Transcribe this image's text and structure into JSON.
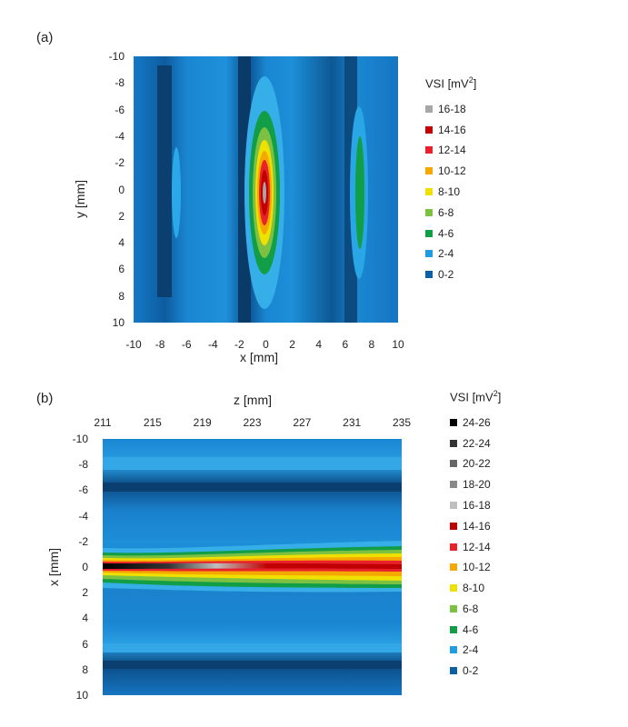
{
  "chart_data": [
    {
      "panel": "(a)",
      "type": "heatmap",
      "xlabel": "x [mm]",
      "ylabel": "y [mm]",
      "x_ticks": [
        "-10",
        "-8",
        "-6",
        "-4",
        "-2",
        "0",
        "2",
        "4",
        "6",
        "8",
        "10"
      ],
      "y_ticks": [
        "-10",
        "-8",
        "-6",
        "-4",
        "-2",
        "0",
        "2",
        "4",
        "6",
        "8",
        "10"
      ],
      "xlim": [
        -10,
        10
      ],
      "ylim": [
        -10,
        10
      ],
      "legend": {
        "title": "VSI [mV",
        "title_sup": "2",
        "title_end": "]",
        "entries": [
          {
            "label": "16-18",
            "color": "#a6a6a6"
          },
          {
            "label": "14-16",
            "color": "#c00000"
          },
          {
            "label": "12-14",
            "color": "#e8212b"
          },
          {
            "label": "10-12",
            "color": "#f5a800"
          },
          {
            "label": "8-10",
            "color": "#f0e000"
          },
          {
            "label": "6-8",
            "color": "#7cc142"
          },
          {
            "label": "4-6",
            "color": "#129d47"
          },
          {
            "label": "2-4",
            "color": "#1f9de0"
          },
          {
            "label": "0-2",
            "color": "#0c5fa0"
          }
        ]
      },
      "features": [
        {
          "kind": "central-peak",
          "x": 0,
          "y": 0,
          "peak_range": "16-18",
          "extent_y": [
            -9,
            8
          ]
        },
        {
          "kind": "side-ridge",
          "x": 7,
          "peak_range": "4-6",
          "extent_y": [
            -6,
            6
          ]
        },
        {
          "kind": "side-ridge",
          "x": -7,
          "peak_range": "2-4",
          "extent_y": [
            -4,
            4
          ]
        },
        {
          "kind": "trough",
          "x": -8,
          "value_range": "0-2"
        },
        {
          "kind": "trough",
          "x": -1.5,
          "value_range": "0-2"
        },
        {
          "kind": "trough",
          "x": 5.5,
          "value_range": "0-2"
        }
      ]
    },
    {
      "panel": "(b)",
      "type": "heatmap",
      "xlabel": "z [mm]",
      "ylabel": "x [mm]",
      "x_ticks": [
        "211",
        "215",
        "219",
        "223",
        "227",
        "231",
        "235"
      ],
      "y_ticks": [
        "-10",
        "-8",
        "-6",
        "-4",
        "-2",
        "0",
        "2",
        "4",
        "6",
        "8",
        "10"
      ],
      "xlim": [
        211,
        235
      ],
      "ylim": [
        -10,
        10
      ],
      "legend": {
        "title": "VSI [mV",
        "title_sup": "2",
        "title_end": "]",
        "entries": [
          {
            "label": "24-26",
            "color": "#000000"
          },
          {
            "label": "22-24",
            "color": "#333333"
          },
          {
            "label": "20-22",
            "color": "#666666"
          },
          {
            "label": "18-20",
            "color": "#888888"
          },
          {
            "label": "16-18",
            "color": "#bfbfbf"
          },
          {
            "label": "14-16",
            "color": "#c00000"
          },
          {
            "label": "12-14",
            "color": "#e8212b"
          },
          {
            "label": "10-12",
            "color": "#f5a800"
          },
          {
            "label": "8-10",
            "color": "#f0e000"
          },
          {
            "label": "6-8",
            "color": "#7cc142"
          },
          {
            "label": "4-6",
            "color": "#129d47"
          },
          {
            "label": "2-4",
            "color": "#1f9de0"
          },
          {
            "label": "0-2",
            "color": "#0c5fa0"
          }
        ]
      },
      "features": [
        {
          "kind": "central-band",
          "x": 0,
          "peak_range": "24-26",
          "peak_z": [
            211,
            218
          ]
        },
        {
          "kind": "trough-band",
          "x": -6.5,
          "value_range": "0-2"
        },
        {
          "kind": "trough-band",
          "x": 7.5,
          "value_range": "0-2"
        },
        {
          "kind": "ridge-band",
          "x": -8,
          "value_range": "2-4"
        },
        {
          "kind": "ridge-band",
          "x": 6.5,
          "value_range": "2-4"
        }
      ]
    }
  ]
}
